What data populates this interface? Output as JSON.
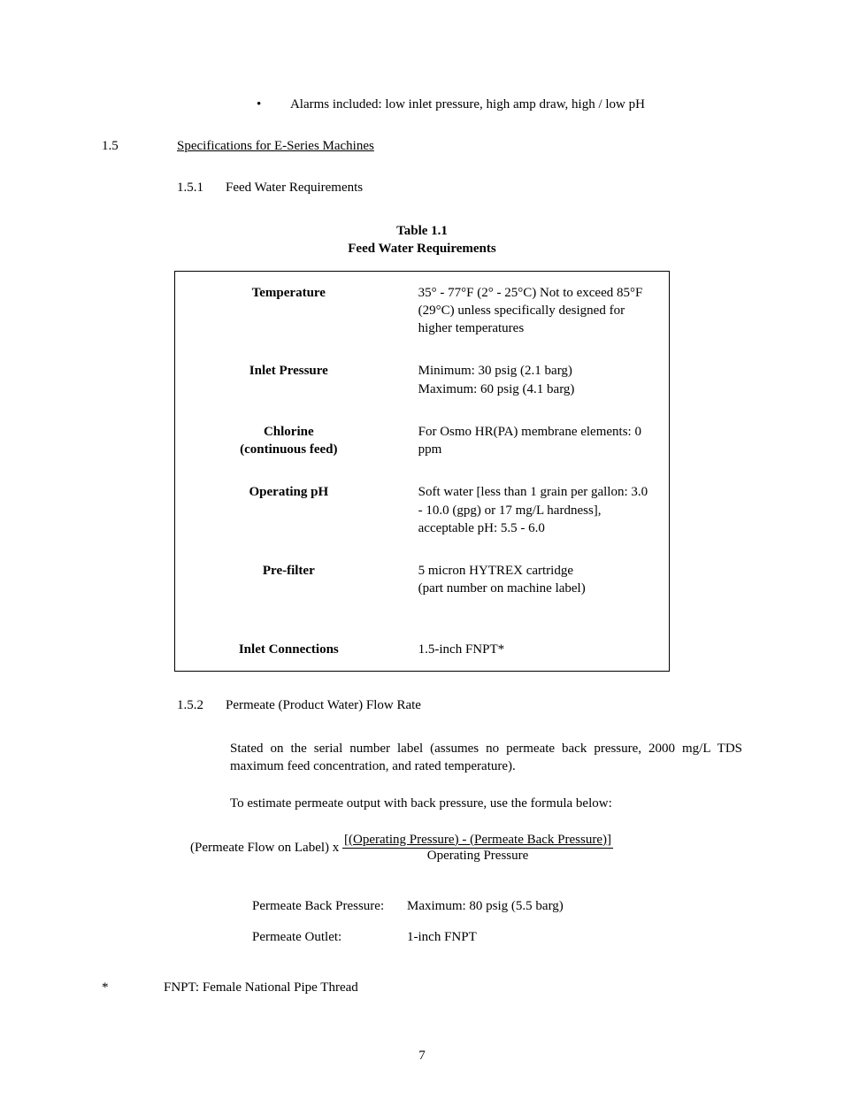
{
  "bullet": {
    "dot": "•",
    "text": "Alarms included:  low inlet pressure, high amp draw, high / low pH"
  },
  "section": {
    "num": "1.5",
    "title": "Specifications for E-Series Machines"
  },
  "subsection1": {
    "num": "1.5.1",
    "title": "Feed Water Requirements"
  },
  "tableCaption": {
    "line1": "Table 1.1",
    "line2": "Feed Water Requirements"
  },
  "tableRows": [
    {
      "label": "Temperature",
      "value": "35° - 77°F (2° - 25°C)  Not to exceed 85°F (29°C) unless specifically designed for higher temperatures"
    },
    {
      "label": "Inlet Pressure",
      "value": "Minimum:  30 psig (2.1 barg)\nMaximum: 60 psig (4.1 barg)"
    },
    {
      "label": "Chlorine\n(continuous feed)",
      "value": "For Osmo HR(PA) membrane elements: 0 ppm"
    },
    {
      "label": "Operating pH",
      "value": "Soft water [less than 1 grain per gallon: 3.0 - 10.0 (gpg) or 17 mg/L hardness], acceptable pH: 5.5 - 6.0"
    },
    {
      "label": "Pre-filter",
      "value": "5 micron HYTREX cartridge\n(part number on machine label)"
    },
    {
      "label": "Inlet Connections",
      "value": "1.5-inch FNPT*"
    }
  ],
  "subsection2": {
    "num": "1.5.2",
    "title": "Permeate (Product Water) Flow Rate"
  },
  "para1": "Stated on the serial number label (assumes no permeate back pressure, 2000 mg/L TDS maximum feed concentration, and rated temperature).",
  "para2": "To estimate permeate output with back pressure, use the formula below:",
  "formula": {
    "lead": "(Permeate Flow on Label) x ",
    "numerator": "[(Operating Pressure) - (Permeate Back Pressure)]",
    "denominator": "Operating Pressure"
  },
  "specs": [
    {
      "label": "Permeate Back Pressure:",
      "value": "Maximum: 80 psig (5.5 barg)"
    },
    {
      "label": "Permeate Outlet:",
      "value": "1-inch FNPT"
    }
  ],
  "footnote": {
    "mark": "*",
    "text": "FNPT: Female National Pipe Thread"
  },
  "pageNumber": "7"
}
